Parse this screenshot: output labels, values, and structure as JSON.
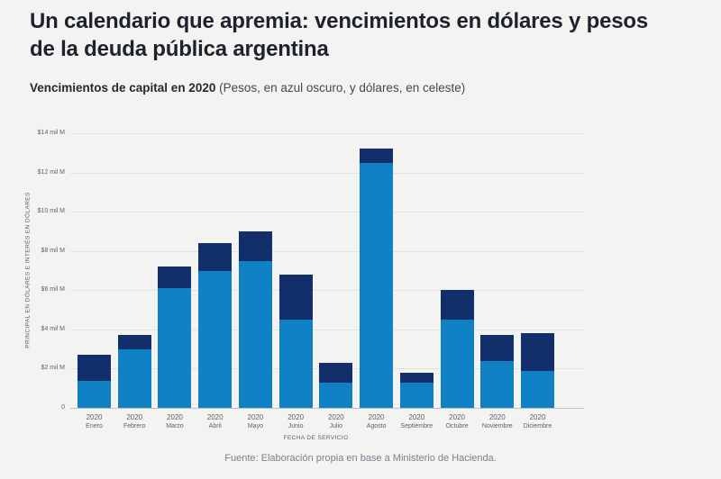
{
  "page": {
    "title": "Un calendario que apremia: vencimientos en dólares y pesos de la deuda pública argentina",
    "subtitle_bold": "Vencimientos de capital en 2020",
    "subtitle_rest": " (Pesos, en azul oscuro, y dólares, en celeste)",
    "source": "Fuente: Elaboración propia en base a Ministerio de Hacienda."
  },
  "colors": {
    "background": "#f3f3f1",
    "dollars_celeste": "#1181c5",
    "pesos_navy": "#122f6b",
    "gridline": "#e2e2e0",
    "tick_text": "#5d6166"
  },
  "chart_data": {
    "type": "bar",
    "stacked": true,
    "title": "Vencimientos de capital en 2020",
    "xlabel": "FECHA DE SERVICIO",
    "ylabel": "PRINCIPAL EN DÓLARES E INTERÉS EN DÓLARES",
    "ylim": [
      0,
      14
    ],
    "grid": true,
    "legend_position": "none (encoded in subtitle: pesos = azul oscuro, dólares = celeste)",
    "ytick_values": [
      0,
      2,
      4,
      6,
      8,
      10,
      12,
      14
    ],
    "ytick_labels": [
      "0",
      "$2 mil M",
      "$4 mil M",
      "$6 mil M",
      "$8 mil M",
      "$10 mil M",
      "$12 mil M",
      "$14 mil M"
    ],
    "x_year": "2020",
    "categories": [
      "Enero",
      "Febrero",
      "Marzo",
      "Abril",
      "Mayo",
      "Junio",
      "Julio",
      "Agosto",
      "Septiembre",
      "Octubre",
      "Noviembre",
      "Diciembre"
    ],
    "unit": "mil M (miles de millones de USD)",
    "series": [
      {
        "name": "Dólares (celeste)",
        "color": "#1181c5",
        "values": [
          1.4,
          3.0,
          6.1,
          7.0,
          7.5,
          4.5,
          1.3,
          12.5,
          1.3,
          4.5,
          2.4,
          1.9
        ]
      },
      {
        "name": "Pesos (azul oscuro)",
        "color": "#122f6b",
        "values": [
          1.3,
          0.7,
          1.1,
          1.4,
          1.5,
          2.3,
          1.0,
          0.7,
          0.5,
          1.5,
          1.3,
          1.9
        ]
      }
    ],
    "totals": [
      2.7,
      3.7,
      7.2,
      8.4,
      9.0,
      6.8,
      2.3,
      13.2,
      1.8,
      6.0,
      3.7,
      3.8
    ]
  }
}
